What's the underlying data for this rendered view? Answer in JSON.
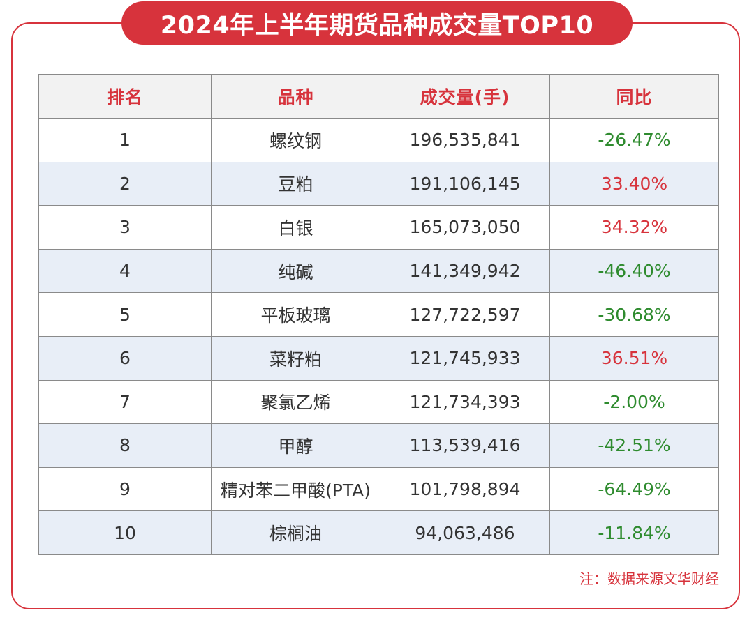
{
  "title": "2024年上半年期货品种成交量TOP10",
  "note": "注：数据来源文华财经",
  "colors": {
    "accent": "#d7333c",
    "positive": "#d7333c",
    "negative": "#2e8b2e",
    "row_alt": "#e8eef7",
    "header_bg": "#f2f2f2"
  },
  "chart_data": {
    "type": "table",
    "title": "2024年上半年期货品种成交量TOP10",
    "columns": [
      "排名",
      "品种",
      "成交量(手)",
      "同比"
    ],
    "rows": [
      {
        "rank": "1",
        "name": "螺纹钢",
        "volume": "196,535,841",
        "yoy": "-26.47%",
        "trend": "neg"
      },
      {
        "rank": "2",
        "name": "豆粕",
        "volume": "191,106,145",
        "yoy": "33.40%",
        "trend": "pos"
      },
      {
        "rank": "3",
        "name": "白银",
        "volume": "165,073,050",
        "yoy": "34.32%",
        "trend": "pos"
      },
      {
        "rank": "4",
        "name": "纯碱",
        "volume": "141,349,942",
        "yoy": "-46.40%",
        "trend": "neg"
      },
      {
        "rank": "5",
        "name": "平板玻璃",
        "volume": "127,722,597",
        "yoy": "-30.68%",
        "trend": "neg"
      },
      {
        "rank": "6",
        "name": "菜籽粕",
        "volume": "121,745,933",
        "yoy": "36.51%",
        "trend": "pos"
      },
      {
        "rank": "7",
        "name": "聚氯乙烯",
        "volume": "121,734,393",
        "yoy": "-2.00%",
        "trend": "neg"
      },
      {
        "rank": "8",
        "name": "甲醇",
        "volume": "113,539,416",
        "yoy": "-42.51%",
        "trend": "neg"
      },
      {
        "rank": "9",
        "name": "精对苯二甲酸(PTA)",
        "volume": "101,798,894",
        "yoy": "-64.49%",
        "trend": "neg"
      },
      {
        "rank": "10",
        "name": "棕榈油",
        "volume": "94,063,486",
        "yoy": "-11.84%",
        "trend": "neg"
      }
    ]
  }
}
